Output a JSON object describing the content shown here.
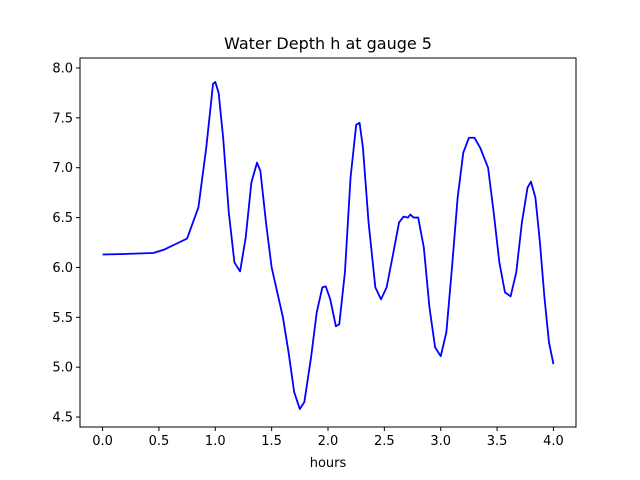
{
  "chart_data": {
    "type": "line",
    "title": "Water Depth h at gauge 5",
    "xlabel": "hours",
    "ylabel": "",
    "xlim": [
      -0.2,
      4.2
    ],
    "ylim": [
      4.4,
      8.1
    ],
    "grid": false,
    "x_ticks": [
      0.0,
      0.5,
      1.0,
      1.5,
      2.0,
      2.5,
      3.0,
      3.5,
      4.0
    ],
    "x_tick_labels": [
      "0.0",
      "0.5",
      "1.0",
      "1.5",
      "2.0",
      "2.5",
      "3.0",
      "3.5",
      "4.0"
    ],
    "y_ticks": [
      4.5,
      5.0,
      5.5,
      6.0,
      6.5,
      7.0,
      7.5,
      8.0
    ],
    "y_tick_labels": [
      "4.5",
      "5.0",
      "5.5",
      "6.0",
      "6.5",
      "7.0",
      "7.5",
      "8.0"
    ],
    "series": [
      {
        "color": "#0000ff",
        "points": [
          [
            0.0,
            6.13
          ],
          [
            0.2,
            6.135
          ],
          [
            0.45,
            6.145
          ],
          [
            0.55,
            6.18
          ],
          [
            0.65,
            6.235
          ],
          [
            0.75,
            6.29
          ],
          [
            0.85,
            6.6
          ],
          [
            0.92,
            7.2
          ],
          [
            0.98,
            7.84
          ],
          [
            1.0,
            7.86
          ],
          [
            1.03,
            7.75
          ],
          [
            1.07,
            7.3
          ],
          [
            1.12,
            6.55
          ],
          [
            1.17,
            6.05
          ],
          [
            1.22,
            5.96
          ],
          [
            1.27,
            6.3
          ],
          [
            1.32,
            6.85
          ],
          [
            1.37,
            7.05
          ],
          [
            1.4,
            6.97
          ],
          [
            1.45,
            6.45
          ],
          [
            1.5,
            6.0
          ],
          [
            1.55,
            5.75
          ],
          [
            1.6,
            5.5
          ],
          [
            1.65,
            5.15
          ],
          [
            1.7,
            4.75
          ],
          [
            1.75,
            4.58
          ],
          [
            1.79,
            4.65
          ],
          [
            1.85,
            5.1
          ],
          [
            1.9,
            5.55
          ],
          [
            1.95,
            5.8
          ],
          [
            1.98,
            5.81
          ],
          [
            2.02,
            5.68
          ],
          [
            2.07,
            5.41
          ],
          [
            2.1,
            5.43
          ],
          [
            2.15,
            5.95
          ],
          [
            2.2,
            6.9
          ],
          [
            2.25,
            7.43
          ],
          [
            2.28,
            7.45
          ],
          [
            2.31,
            7.2
          ],
          [
            2.36,
            6.45
          ],
          [
            2.42,
            5.8
          ],
          [
            2.47,
            5.68
          ],
          [
            2.52,
            5.8
          ],
          [
            2.58,
            6.15
          ],
          [
            2.63,
            6.45
          ],
          [
            2.67,
            6.51
          ],
          [
            2.71,
            6.5
          ],
          [
            2.73,
            6.53
          ],
          [
            2.76,
            6.5
          ],
          [
            2.8,
            6.5
          ],
          [
            2.85,
            6.2
          ],
          [
            2.9,
            5.6
          ],
          [
            2.95,
            5.2
          ],
          [
            3.0,
            5.11
          ],
          [
            3.05,
            5.35
          ],
          [
            3.1,
            6.0
          ],
          [
            3.15,
            6.7
          ],
          [
            3.2,
            7.15
          ],
          [
            3.25,
            7.3
          ],
          [
            3.3,
            7.3
          ],
          [
            3.35,
            7.2
          ],
          [
            3.42,
            7.0
          ],
          [
            3.47,
            6.55
          ],
          [
            3.52,
            6.05
          ],
          [
            3.57,
            5.75
          ],
          [
            3.62,
            5.71
          ],
          [
            3.67,
            5.95
          ],
          [
            3.72,
            6.45
          ],
          [
            3.77,
            6.8
          ],
          [
            3.8,
            6.86
          ],
          [
            3.84,
            6.7
          ],
          [
            3.88,
            6.25
          ],
          [
            3.92,
            5.7
          ],
          [
            3.96,
            5.25
          ],
          [
            4.0,
            5.03
          ]
        ]
      }
    ]
  }
}
